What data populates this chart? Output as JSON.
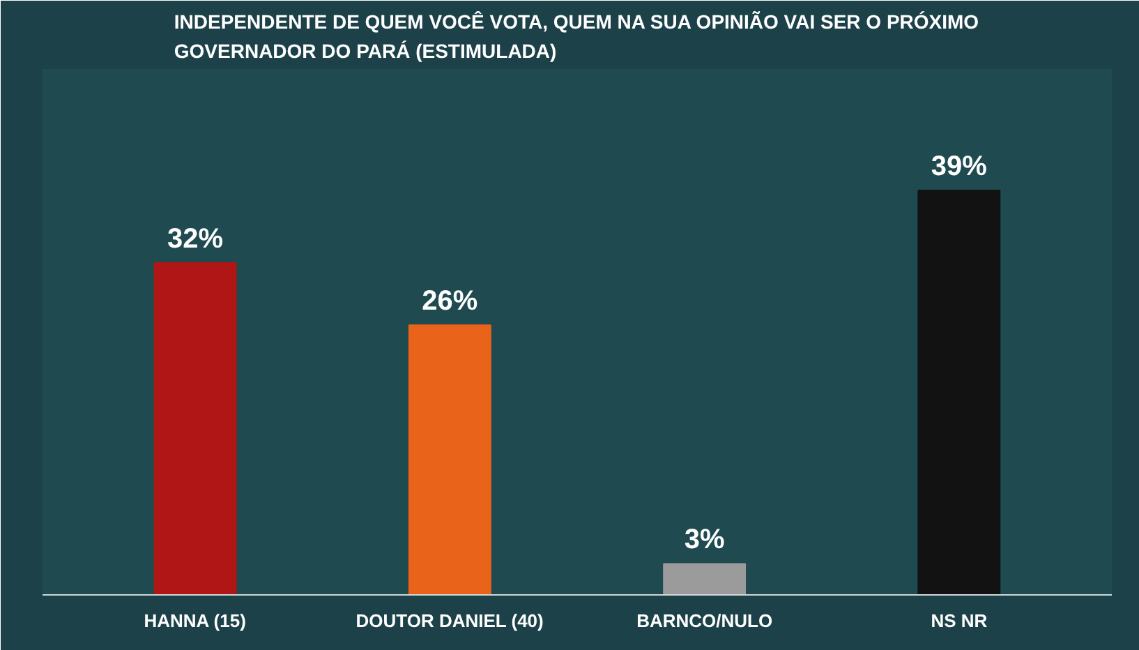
{
  "chart_data": {
    "type": "bar",
    "title": "INDEPENDENTE DE QUEM VOCÊ VOTA, QUEM NA SUA OPINIÃO VAI SER O PRÓXIMO GOVERNADOR DO PARÁ (ESTIMULADA)",
    "categories": [
      "HANNA (15)",
      "DOUTOR DANIEL (40)",
      "BARNCO/NULO",
      "NS NR"
    ],
    "values": [
      32,
      26,
      3,
      39
    ],
    "colors": [
      "#b01616",
      "#e9631a",
      "#9b9b9b",
      "#121212"
    ],
    "value_labels": [
      "32%",
      "26%",
      "3%",
      "39%"
    ],
    "tick_labels": "x",
    "grid": false
  }
}
